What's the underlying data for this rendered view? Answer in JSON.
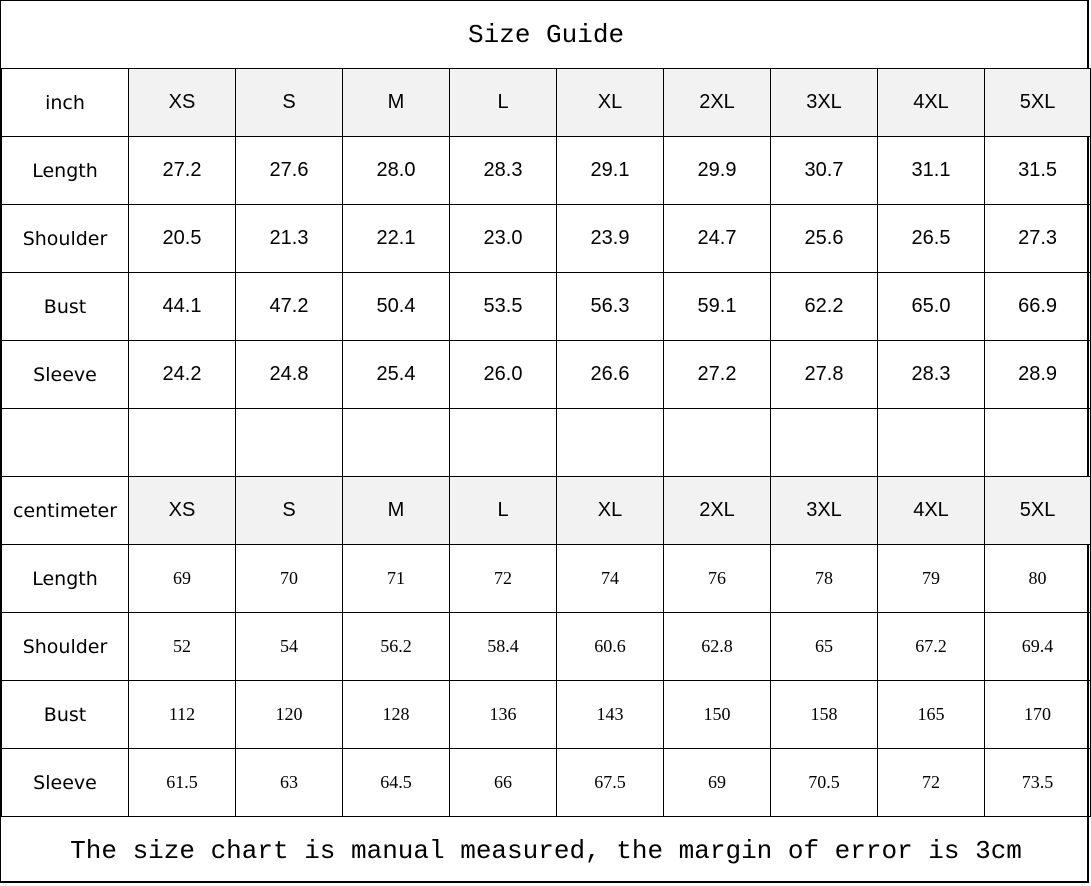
{
  "title": "Size Guide",
  "sizes": [
    "XS",
    "S",
    "M",
    "L",
    "XL",
    "2XL",
    "3XL",
    "4XL",
    "5XL"
  ],
  "inch": {
    "unit_label": "inch",
    "rows": [
      {
        "label": "Length",
        "values": [
          "27.2",
          "27.6",
          "28.0",
          "28.3",
          "29.1",
          "29.9",
          "30.7",
          "31.1",
          "31.5"
        ]
      },
      {
        "label": "Shoulder",
        "values": [
          "20.5",
          "21.3",
          "22.1",
          "23.0",
          "23.9",
          "24.7",
          "25.6",
          "26.5",
          "27.3"
        ]
      },
      {
        "label": "Bust",
        "values": [
          "44.1",
          "47.2",
          "50.4",
          "53.5",
          "56.3",
          "59.1",
          "62.2",
          "65.0",
          "66.9"
        ]
      },
      {
        "label": "Sleeve",
        "values": [
          "24.2",
          "24.8",
          "25.4",
          "26.0",
          "26.6",
          "27.2",
          "27.8",
          "28.3",
          "28.9"
        ]
      }
    ]
  },
  "centimeter": {
    "unit_label": "centimeter",
    "rows": [
      {
        "label": "Length",
        "values": [
          "69",
          "70",
          "71",
          "72",
          "74",
          "76",
          "78",
          "79",
          "80"
        ]
      },
      {
        "label": "Shoulder",
        "values": [
          "52",
          "54",
          "56.2",
          "58.4",
          "60.6",
          "62.8",
          "65",
          "67.2",
          "69.4"
        ]
      },
      {
        "label": "Bust",
        "values": [
          "112",
          "120",
          "128",
          "136",
          "143",
          "150",
          "158",
          "165",
          "170"
        ]
      },
      {
        "label": "Sleeve",
        "values": [
          "61.5",
          "63",
          "64.5",
          "66",
          "67.5",
          "69",
          "70.5",
          "72",
          "73.5"
        ]
      }
    ]
  },
  "footer_note": "The size chart is manual measured, the margin of error is 3cm",
  "colors": {
    "header_bg": "#f2f2f2",
    "border": "#000000"
  }
}
